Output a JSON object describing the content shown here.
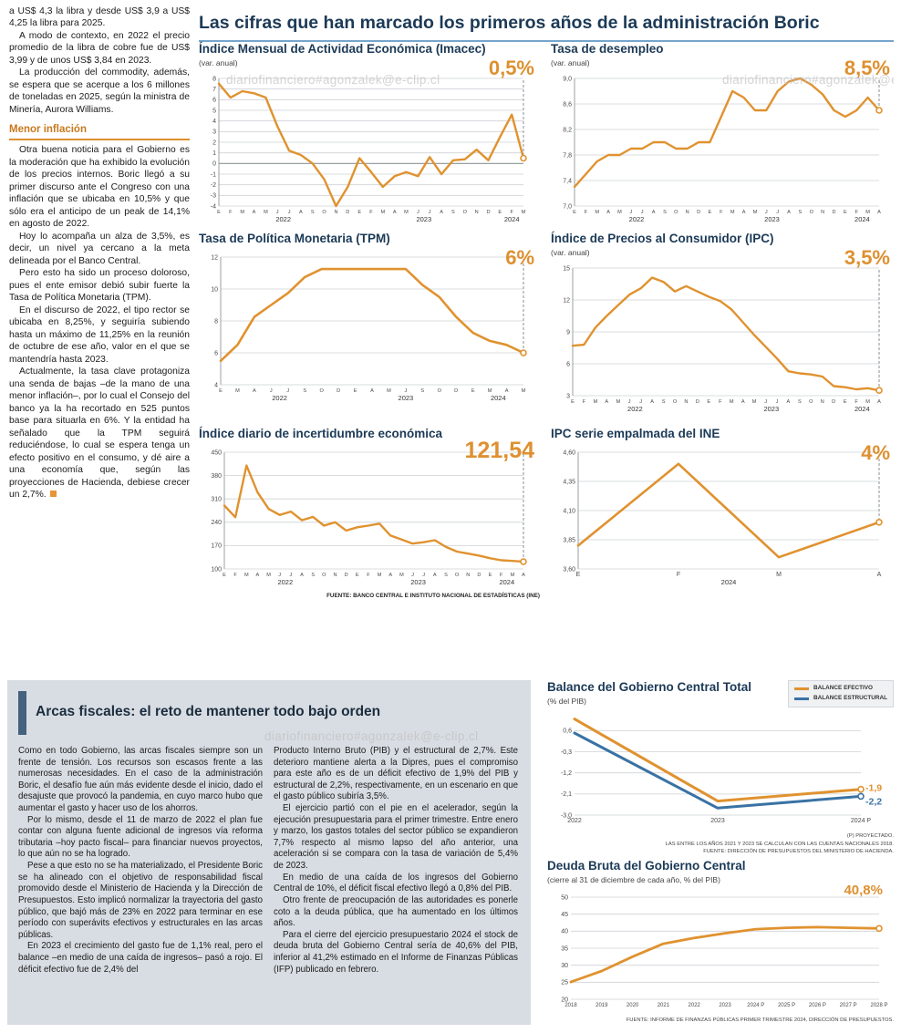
{
  "page": {
    "watermark": "diariofinanciero#agonzalek@e-clip.cl"
  },
  "header": {
    "title": "Las cifras que han marcado los primeros años de la administración Boric"
  },
  "left_column": {
    "subhead": "Menor inflación",
    "paragraphs": [
      "a US$ 4,3 la libra y desde US$ 3,9 a US$ 4,25 la libra para 2025.",
      "A modo de contexto, en 2022 el precio promedio de la libra de cobre fue de US$ 3,99 y de unos US$ 3,84 en 2023.",
      "La producción del commodity, además, se espera que se acerque a los 6 millones de toneladas en 2025, según la ministra de Minería, Aurora Williams.",
      "Otra buena noticia para el Gobierno es la moderación que ha exhibido la evolución de los precios internos. Boric llegó a su primer discurso ante el Congreso con una inflación que se ubicaba en 10,5% y que sólo era el anticipo de un peak de 14,1% en agosto de 2022.",
      "Hoy lo acompaña un alza de 3,5%, es decir, un nivel ya cercano a la meta delineada por el Banco Central.",
      "Pero esto ha sido un proceso doloroso, pues el ente emisor debió subir fuerte la Tasa de Política Monetaria (TPM).",
      "En el discurso de 2022, el tipo rector se ubicaba en 8,25%, y seguiría subiendo hasta un máximo de 11,25% en la reunión de octubre de ese año, valor en el que se mantendría hasta 2023.",
      "Actualmente, la tasa clave protagoniza una senda de bajas –de la mano de una menor inflación–, por lo cual el Consejo del banco ya la ha recortado en 525 puntos base para situarla en 6%. Y la entidad ha señalado que la TPM seguirá reduciéndose, lo cual se espera tenga un efecto positivo en el consumo, y dé aire a una economía que, según las proyecciones de Hacienda, debiese crecer un 2,7%."
    ]
  },
  "top_source": "FUENTE: BANCO CENTRAL E INSTITUTO NACIONAL DE ESTADÍSTICAS (INE)",
  "legend": {
    "efectivo": "BALANCE EFECTIVO",
    "estructural": "BALANCE ESTRUCTURAL"
  },
  "balance_notes": [
    "(P) PROYECTADO.",
    "LAS ENTRE LOS AÑOS 2021 Y 2023 SE CALCULAN CON LAS CUENTAS NACIONALES 2018.",
    "FUENTE: DIRECCIÓN DE PRESUPUESTOS DEL MINISTERIO DE HACIENDA."
  ],
  "deuda_note": "FUENTE: INFORME DE FINANZAS PÚBLICAS PRIMER TRIMESTRE 2024, DIRECCIÓN DE PRESUPUESTOS.",
  "fiscal": {
    "title": "Arcas fiscales: el reto de mantener todo bajo orden",
    "col1": [
      "Como en todo Gobierno, las arcas fiscales siempre son un frente de tensión. Los recursos son escasos frente a las numerosas necesidades. En el caso de la administración Boric, el desafío fue aún más evidente desde el inicio, dado el desajuste que provocó la pandemia, en cuyo marco hubo que aumentar el gasto y hacer uso de los ahorros.",
      "Por lo mismo, desde el 11 de marzo de 2022 el plan fue contar con alguna fuente adicional de ingresos vía reforma tributaria –hoy pacto fiscal– para financiar nuevos proyectos, lo que aún no se ha logrado.",
      "Pese a que esto no se ha materializado, el Presidente Boric se ha alineado con el objetivo de responsabilidad fiscal promovido desde el Ministerio de Hacienda y la Dirección de Presupuestos. Esto implicó normalizar la trayectoria del gasto público, que bajó más de 23% en 2022 para terminar en ese período con superávits efectivos y estructurales en las arcas públicas.",
      "En 2023 el crecimiento del gasto fue de 1,1% real, pero el balance –en medio de una caída de ingresos– pasó a rojo. El déficit efectivo fue de 2,4% del"
    ],
    "col2": [
      "Producto Interno Bruto (PIB) y el estructural de 2,7%. Este deterioro mantiene alerta a la Dipres, pues el compromiso para este año es de un déficit efectivo de 1,9% del PIB y estructural de 2,2%, respectivamente, en un escenario en que el gasto público subiría 3,5%.",
      "El ejercicio partió con el pie en el acelerador, según la ejecución presupuestaria para el primer trimestre. Entre enero y marzo, los gastos totales del sector público se expandieron 7,7% respecto al mismo lapso del año anterior, una aceleración si se compara con la tasa de variación de 5,4% de 2023.",
      "En medio de una caída de los ingresos del Gobierno Central de 10%, el déficit fiscal efectivo llegó a 0,8% del PIB.",
      "Otro frente de preocupación de las autoridades es ponerle coto a la deuda pública, que ha aumentado en los últimos años.",
      "Para el cierre del ejercicio presupuestario 2024 el stock de deuda bruta del Gobierno Central sería de 40,6% del PIB, inferior al 41,2% estimado en el Informe de Finanzas Públicas (IFP) publicado en febrero."
    ]
  },
  "colors": {
    "accent_orange": "#DE9030",
    "line_orange": "#E0922F",
    "line_blue": "#3A72A4",
    "navy": "#1C3A57"
  },
  "chart_data": [
    {
      "id": "imacec",
      "type": "line",
      "title": "Índice Mensual de Actividad Económica (Imacec)",
      "subtitle": "(var. anual)",
      "highlight": "0,5%",
      "ylim": [
        -4,
        8
      ],
      "yticks": [
        8,
        7,
        6,
        5,
        4,
        3,
        2,
        1,
        0,
        -1,
        -2,
        -3,
        -4
      ],
      "ytick_labels": [
        "8",
        "7",
        "6",
        "5",
        "4",
        "3",
        "2",
        "1",
        "0",
        "-1",
        "-2",
        "-3",
        "-4"
      ],
      "x_labels": [
        "E",
        "F",
        "M",
        "A",
        "M",
        "J",
        "J",
        "A",
        "S",
        "O",
        "N",
        "D",
        "E",
        "F",
        "M",
        "A",
        "M",
        "J",
        "J",
        "A",
        "S",
        "O",
        "N",
        "D",
        "E",
        "F",
        "M"
      ],
      "years": [
        {
          "label": "2022",
          "i": 5.5
        },
        {
          "label": "2023",
          "i": 17.5
        },
        {
          "label": "2024",
          "i": 25
        }
      ],
      "zero_line": true,
      "axis": true,
      "dash": true,
      "m": {
        "l": 22,
        "r": 18,
        "t": 8,
        "b": 24
      },
      "series": [
        {
          "name": "Imacec",
          "color": "#E0922F",
          "width": 2.4,
          "values": [
            7.5,
            6.2,
            6.8,
            6.6,
            6.2,
            3.5,
            1.2,
            0.8,
            0.0,
            -1.5,
            -4.0,
            -2.2,
            0.5,
            -0.8,
            -2.2,
            -1.2,
            -0.8,
            -1.2,
            0.6,
            -1.0,
            0.3,
            0.4,
            1.3,
            0.3,
            2.5,
            4.6,
            0.5
          ]
        }
      ]
    },
    {
      "id": "desempleo",
      "type": "line",
      "title": "Tasa de desempleo",
      "subtitle": "(var. anual)",
      "highlight": "8,5%",
      "ylim": [
        7.0,
        9.0
      ],
      "yticks": [
        9.0,
        8.6,
        8.2,
        7.8,
        7.4,
        7.0
      ],
      "ytick_labels": [
        "9,0",
        "8,6",
        "8,2",
        "7,8",
        "7,4",
        "7,0"
      ],
      "x_labels": [
        "E",
        "F",
        "M",
        "A",
        "M",
        "J",
        "J",
        "A",
        "S",
        "O",
        "N",
        "D",
        "E",
        "F",
        "M",
        "A",
        "M",
        "J",
        "J",
        "A",
        "S",
        "O",
        "N",
        "D",
        "E",
        "F",
        "M",
        "A"
      ],
      "years": [
        {
          "label": "2022",
          "i": 5.5
        },
        {
          "label": "2023",
          "i": 17.5
        },
        {
          "label": "2024",
          "i": 25.5
        }
      ],
      "zero_line": false,
      "axis": true,
      "dash": true,
      "m": {
        "l": 26,
        "r": 18,
        "t": 8,
        "b": 24
      },
      "series": [
        {
          "name": "Tasa de desempleo",
          "color": "#E0922F",
          "width": 2.4,
          "values": [
            7.3,
            7.5,
            7.7,
            7.8,
            7.8,
            7.9,
            7.9,
            8.0,
            8.0,
            7.9,
            7.9,
            8.0,
            8.0,
            8.4,
            8.8,
            8.7,
            8.5,
            8.5,
            8.8,
            8.95,
            9.0,
            8.9,
            8.75,
            8.5,
            8.4,
            8.5,
            8.7,
            8.5
          ]
        }
      ]
    },
    {
      "id": "tpm",
      "type": "line",
      "title": "Tasa de Política Monetaria (TPM)",
      "subtitle": "",
      "highlight": "6%",
      "ylim": [
        4,
        12
      ],
      "yticks": [
        12,
        10,
        8,
        6,
        4
      ],
      "ytick_labels": [
        "12",
        "10",
        "8",
        "6",
        "4"
      ],
      "x_labels": [
        "E",
        "M",
        "A",
        "J",
        "J",
        "S",
        "O",
        "D",
        "E",
        "A",
        "M",
        "J",
        "S",
        "O",
        "D",
        "E",
        "M",
        "A",
        "M"
      ],
      "years": [
        {
          "label": "2022",
          "i": 3.5
        },
        {
          "label": "2023",
          "i": 11
        },
        {
          "label": "2024",
          "i": 16.5
        }
      ],
      "zero_line": false,
      "axis": true,
      "dash": true,
      "m": {
        "l": 24,
        "r": 18,
        "t": 8,
        "b": 24
      },
      "series": [
        {
          "name": "TPM",
          "color": "#E0922F",
          "width": 2.6,
          "values": [
            5.5,
            6.5,
            8.25,
            9.0,
            9.75,
            10.75,
            11.25,
            11.25,
            11.25,
            11.25,
            11.25,
            11.25,
            10.25,
            9.5,
            8.25,
            7.25,
            6.75,
            6.5,
            6.0
          ]
        }
      ]
    },
    {
      "id": "ipc",
      "type": "line",
      "title": "Índice de Precios al Consumidor (IPC)",
      "subtitle": "(var. anual)",
      "highlight": "3,5%",
      "ylim": [
        3,
        15
      ],
      "yticks": [
        15,
        12,
        9,
        6,
        3
      ],
      "ytick_labels": [
        "15",
        "12",
        "9",
        "6",
        "3"
      ],
      "x_labels": [
        "E",
        "F",
        "M",
        "A",
        "M",
        "J",
        "J",
        "A",
        "S",
        "O",
        "N",
        "D",
        "E",
        "F",
        "M",
        "A",
        "M",
        "J",
        "J",
        "A",
        "S",
        "O",
        "N",
        "D",
        "E",
        "F",
        "M",
        "A"
      ],
      "years": [
        {
          "label": "2022",
          "i": 5.5
        },
        {
          "label": "2023",
          "i": 17.5
        },
        {
          "label": "2024",
          "i": 25.5
        }
      ],
      "zero_line": false,
      "axis": true,
      "dash": true,
      "m": {
        "l": 24,
        "r": 18,
        "t": 8,
        "b": 24
      },
      "series": [
        {
          "name": "IPC",
          "color": "#E0922F",
          "width": 2.4,
          "values": [
            7.7,
            7.8,
            9.4,
            10.5,
            11.5,
            12.5,
            13.1,
            14.1,
            13.7,
            12.8,
            13.3,
            12.8,
            12.3,
            11.9,
            11.1,
            9.9,
            8.7,
            7.6,
            6.5,
            5.3,
            5.1,
            5.0,
            4.8,
            3.9,
            3.8,
            3.6,
            3.7,
            3.5
          ]
        }
      ]
    },
    {
      "id": "incertidumbre",
      "type": "line",
      "title": "Índice diario de incertidumbre económica",
      "subtitle": "",
      "highlight": "121,54",
      "ylim": [
        100,
        450
      ],
      "yticks": [
        450,
        380,
        310,
        240,
        170,
        100
      ],
      "ytick_labels": [
        "450",
        "380",
        "310",
        "240",
        "170",
        "100"
      ],
      "x_labels": [
        "E",
        "F",
        "M",
        "A",
        "M",
        "J",
        "J",
        "A",
        "S",
        "O",
        "N",
        "D",
        "E",
        "F",
        "M",
        "A",
        "M",
        "J",
        "J",
        "A",
        "S",
        "O",
        "N",
        "D",
        "E",
        "F",
        "M",
        "A"
      ],
      "years": [
        {
          "label": "2022",
          "i": 5.5
        },
        {
          "label": "2023",
          "i": 17.5
        },
        {
          "label": "2024",
          "i": 25.5
        }
      ],
      "zero_line": false,
      "axis": true,
      "dash": true,
      "m": {
        "l": 28,
        "r": 18,
        "t": 8,
        "b": 24
      },
      "series": [
        {
          "name": "Incertidumbre económica",
          "color": "#E0922F",
          "width": 2.4,
          "values": [
            290,
            255,
            410,
            330,
            280,
            262,
            272,
            246,
            256,
            230,
            240,
            215,
            225,
            230,
            236,
            200,
            188,
            176,
            180,
            186,
            166,
            152,
            146,
            140,
            132,
            126,
            124,
            121.54
          ]
        }
      ]
    },
    {
      "id": "ipc_empalmada",
      "type": "line",
      "title": "IPC serie empalmada del INE",
      "subtitle": "",
      "highlight": "4%",
      "ylim": [
        3.6,
        4.6
      ],
      "yticks": [
        4.6,
        4.35,
        4.1,
        3.85,
        3.6
      ],
      "ytick_labels": [
        "4,60",
        "4,35",
        "4,10",
        "3,85",
        "3,60"
      ],
      "x_labels": [
        "E",
        "F",
        "M",
        "A"
      ],
      "xfs": 7,
      "years": [
        {
          "label": "2024",
          "i": 1.5
        }
      ],
      "zero_line": false,
      "axis": true,
      "dash": true,
      "m": {
        "l": 30,
        "r": 18,
        "t": 8,
        "b": 24
      },
      "series": [
        {
          "name": "IPC serie empalmada",
          "color": "#E0922F",
          "width": 2.6,
          "values": [
            3.8,
            4.5,
            3.7,
            4.0
          ]
        }
      ]
    },
    {
      "id": "balance",
      "type": "line",
      "title": "Balance del Gobierno Central Total",
      "subtitle": "(% del PIB)",
      "highlight": "",
      "ylim": [
        -3.0,
        1.2
      ],
      "yticks": [
        0.6,
        -0.3,
        -1.2,
        -2.1,
        -3.0
      ],
      "ytick_labels": [
        "0,6",
        "-0,3",
        "-1,2",
        "-2,1",
        "-3,0"
      ],
      "x_labels": [
        "2022",
        "2023",
        "2024 P"
      ],
      "xfs": 7,
      "years": [],
      "zero_line": false,
      "axis": false,
      "dash": false,
      "m": {
        "l": 30,
        "r": 36,
        "t": 8,
        "b": 16
      },
      "series": [
        {
          "name": "Balance efectivo",
          "color": "#E0922F",
          "width": 3,
          "end_label": "-1,9",
          "label_dy": -1,
          "values": [
            1.1,
            -2.4,
            -1.9
          ]
        },
        {
          "name": "Balance estructural",
          "color": "#3A72A4",
          "width": 3,
          "end_label": "-2,2",
          "label_dy": 6,
          "values": [
            0.5,
            -2.7,
            -2.2
          ]
        }
      ]
    },
    {
      "id": "deuda",
      "type": "line",
      "title": "Deuda Bruta del Gobierno Central",
      "subtitle": "(cierre al 31 de diciembre de cada año, % del PIB)",
      "highlight": "40,8%",
      "ylim": [
        20,
        50
      ],
      "yticks": [
        50,
        45,
        40,
        35,
        30,
        25,
        20
      ],
      "ytick_labels": [
        "50",
        "45",
        "40",
        "35",
        "30",
        "25",
        "20"
      ],
      "x_labels": [
        "2018",
        "2019",
        "2020",
        "2021",
        "2022",
        "2023",
        "2024 P",
        "2025 P",
        "2026 P",
        "2027 P",
        "2028 P"
      ],
      "xfs": 6,
      "years": [],
      "zero_line": false,
      "axis": false,
      "dash": false,
      "m": {
        "l": 26,
        "r": 16,
        "t": 10,
        "b": 16
      },
      "series": [
        {
          "name": "Deuda bruta",
          "color": "#E0922F",
          "width": 2.8,
          "values": [
            25.1,
            28.3,
            32.5,
            36.3,
            38.0,
            39.4,
            40.6,
            41.0,
            41.2,
            41.0,
            40.8
          ]
        }
      ]
    }
  ]
}
